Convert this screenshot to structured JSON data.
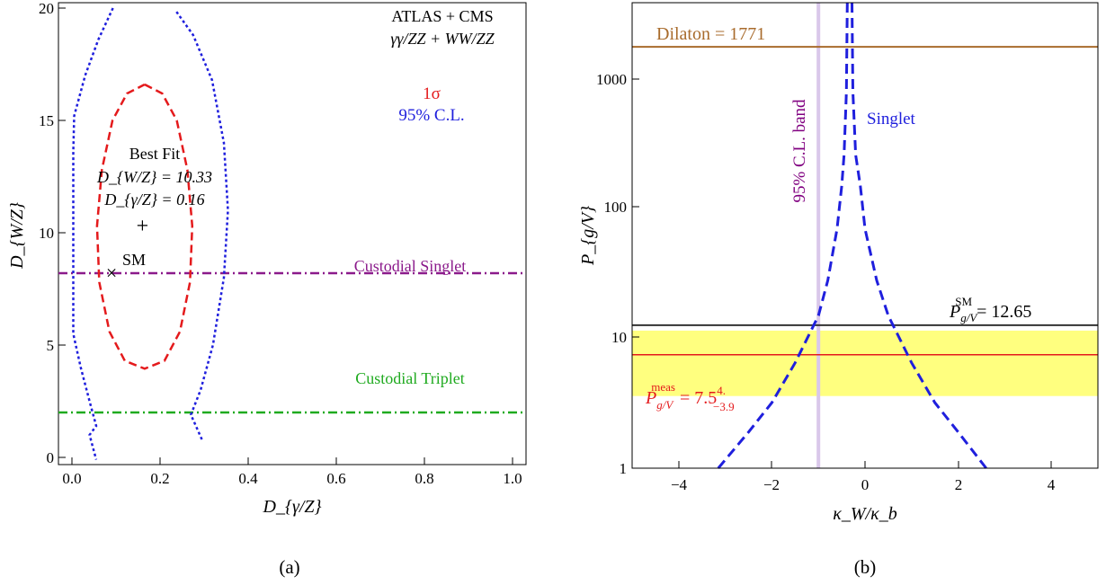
{
  "chart_data": [
    {
      "type": "line",
      "panel_caption": "(a)",
      "xlabel": "D_{γ/Z}",
      "ylabel": "D_{W/Z}",
      "xlim": [
        -0.02,
        1.02
      ],
      "ylim": [
        -0.3,
        20.2
      ],
      "xticks": [
        0.0,
        0.2,
        0.4,
        0.6,
        0.8,
        1.0
      ],
      "xtick_labels": [
        "0.0",
        "0.2",
        "0.4",
        "0.6",
        "0.8",
        "1.0"
      ],
      "yticks": [
        0,
        5,
        10,
        15,
        20
      ],
      "ytick_labels": [
        "0",
        "5",
        "10",
        "15",
        "20"
      ],
      "grid": false,
      "header_lines": [
        "ATLAS + CMS",
        "γγ/ZZ + WW/ZZ"
      ],
      "legend": {
        "placement": "top-right",
        "entries": [
          {
            "label": "1σ",
            "color": "#e41a1c"
          },
          {
            "label": "95% C.L.",
            "color": "#1f1fdd"
          }
        ]
      },
      "best_fit": {
        "title": "Best Fit",
        "dw_label": "D_{W/Z} = 10.33",
        "dg_label": "D_{γ/Z} = 0.16",
        "x": 0.16,
        "y": 10.33,
        "marker": "+"
      },
      "sm_point": {
        "label": "SM",
        "x": 0.09,
        "y": 8.2,
        "marker": "×"
      },
      "reference_lines": [
        {
          "name": "Custodial Singlet",
          "y": 8.2,
          "color": "#8b1a8b",
          "style": "dash-dot"
        },
        {
          "name": "Custodial Triplet",
          "y": 2.0,
          "color": "#1faa1f",
          "style": "dash-dot"
        }
      ],
      "contours": [
        {
          "name": "1σ",
          "color": "#e41a1c",
          "style": "dashed",
          "points": [
            [
              0.165,
              16.6
            ],
            [
              0.205,
              16.2
            ],
            [
              0.238,
              15.0
            ],
            [
              0.262,
              12.8
            ],
            [
              0.273,
              10.3
            ],
            [
              0.268,
              7.8
            ],
            [
              0.245,
              5.6
            ],
            [
              0.21,
              4.3
            ],
            [
              0.165,
              3.95
            ],
            [
              0.12,
              4.3
            ],
            [
              0.085,
              5.6
            ],
            [
              0.062,
              7.8
            ],
            [
              0.057,
              10.3
            ],
            [
              0.068,
              12.8
            ],
            [
              0.092,
              15.0
            ],
            [
              0.125,
              16.2
            ],
            [
              0.165,
              16.6
            ]
          ]
        },
        {
          "name": "95% C.L. outer",
          "color": "#1f1fdd",
          "style": "dotted",
          "points": [
            [
              0.295,
              0.8
            ],
            [
              0.27,
              1.9
            ],
            [
              0.292,
              3.0
            ],
            [
              0.32,
              5.0
            ],
            [
              0.345,
              8.0
            ],
            [
              0.354,
              11.0
            ],
            [
              0.345,
              14.0
            ],
            [
              0.318,
              16.8
            ],
            [
              0.275,
              18.8
            ],
            [
              0.235,
              19.9
            ]
          ]
        },
        {
          "name": "95% C.L. inner",
          "color": "#1f1fdd",
          "style": "dotted",
          "points": [
            [
              0.093,
              20.0
            ],
            [
              0.06,
              18.6
            ],
            [
              0.03,
              17.0
            ],
            [
              0.005,
              15.2
            ],
            [
              0.003,
              13.6
            ],
            [
              0.003,
              5.5
            ],
            [
              0.02,
              4.0
            ],
            [
              0.04,
              2.5
            ],
            [
              0.055,
              1.4
            ],
            [
              0.04,
              1.0
            ],
            [
              0.055,
              -0.1
            ]
          ]
        }
      ]
    },
    {
      "type": "line",
      "panel_caption": "(b)",
      "xlabel": "κ_W/κ_b",
      "ylabel": "P_{g/V}",
      "xlim": [
        -5,
        5
      ],
      "ylim": [
        1,
        4000
      ],
      "yscale": "log",
      "xticks": [
        -4,
        -2,
        0,
        2,
        4
      ],
      "xtick_labels": [
        "−4",
        "−2",
        "0",
        "2",
        "4"
      ],
      "yticks": [
        1,
        10,
        100,
        1000
      ],
      "ytick_labels": [
        "1",
        "10",
        "100",
        "1000"
      ],
      "grid": false,
      "band": {
        "y_low": 3.6,
        "y_high": 11.5,
        "color": "#ffff7f"
      },
      "reference_lines": [
        {
          "name": "Dilaton",
          "label": "Dilaton = 1771",
          "y": 1771,
          "color": "#a86b2c"
        },
        {
          "name": "SM",
          "label_main": "P",
          "label_sub": "g/V",
          "label_sup": "SM",
          "label_value": " = 12.65",
          "y": 12.65,
          "color": "#333333"
        },
        {
          "name": "meas",
          "label_main": "P",
          "label_sub": "g/V",
          "label_sup": "meas",
          "label_value": " = 7.5",
          "label_sup2": "4.",
          "label_sub2": "−3.9",
          "y": 7.5,
          "color": "#e41a1c"
        }
      ],
      "vertical_band": {
        "label": "95% C.L. band",
        "x": -1.0,
        "color": "#d9c7ea",
        "label_color": "#800080"
      },
      "curves": [
        {
          "name": "Singlet",
          "color": "#1f1fdd",
          "style": "dashed",
          "x": [
            -3.15,
            -2.5,
            -2.0,
            -1.5,
            -1.0,
            -0.8,
            -0.6,
            -0.5,
            -0.45,
            -0.4,
            -0.38
          ],
          "y": [
            1.0,
            1.9,
            3.2,
            6.5,
            15.0,
            28,
            70,
            150,
            260,
            800,
            4000
          ]
        },
        {
          "name": "Singlet right",
          "color": "#1f1fdd",
          "style": "dashed",
          "x": [
            -0.28,
            -0.26,
            -0.2,
            -0.1,
            0.0,
            0.25,
            0.5,
            1.0,
            1.5,
            2.0,
            2.6
          ],
          "y": [
            4000,
            800,
            260,
            150,
            70,
            28,
            15,
            6.5,
            3.2,
            1.9,
            1.0
          ]
        }
      ]
    }
  ]
}
